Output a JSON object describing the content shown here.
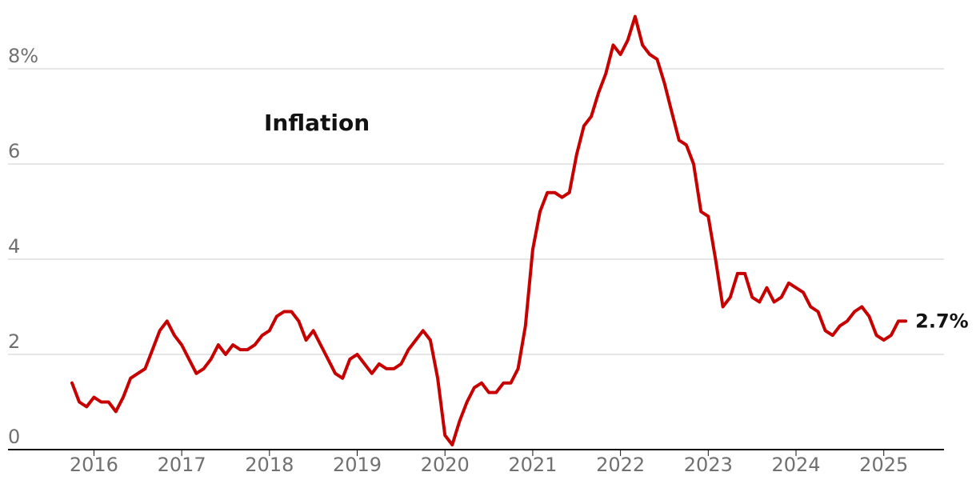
{
  "chart_data": {
    "type": "line",
    "title": "Inflation",
    "xlabel": "",
    "ylabel": "",
    "ylim": [
      0,
      9.2
    ],
    "grid": true,
    "y_ticks": [
      {
        "value": 0,
        "label": "0"
      },
      {
        "value": 2,
        "label": "2"
      },
      {
        "value": 4,
        "label": "4"
      },
      {
        "value": 6,
        "label": "6"
      },
      {
        "value": 8,
        "label": "8%"
      }
    ],
    "x_ticks": [
      "2016",
      "2017",
      "2018",
      "2019",
      "2020",
      "2021",
      "2022",
      "2023",
      "2024",
      "2025"
    ],
    "end_label": "2.7%",
    "colors": {
      "line": "#c70000",
      "grid": "#cccccc",
      "axis": "#121212"
    },
    "series": [
      {
        "x": [
          2016.0,
          2016.083,
          2016.167,
          2016.25,
          2016.333,
          2016.417,
          2016.5,
          2016.583,
          2016.667,
          2016.75,
          2016.833,
          2016.917,
          2017.0,
          2017.083,
          2017.167,
          2017.25,
          2017.333,
          2017.417,
          2017.5,
          2017.583,
          2017.667,
          2017.75,
          2017.833,
          2017.917,
          2018.0,
          2018.083,
          2018.167,
          2018.25,
          2018.333,
          2018.417,
          2018.5,
          2018.583,
          2018.667,
          2018.75,
          2018.833,
          2018.917,
          2019.0,
          2019.083,
          2019.167,
          2019.25,
          2019.333,
          2019.417,
          2019.5,
          2019.583,
          2019.667,
          2019.75,
          2019.833,
          2019.917,
          2020.0,
          2020.083,
          2020.167,
          2020.25,
          2020.333,
          2020.417,
          2020.5,
          2020.583,
          2020.667,
          2020.75,
          2020.833,
          2020.917,
          2021.0,
          2021.083,
          2021.167,
          2021.25,
          2021.333,
          2021.417,
          2021.5,
          2021.583,
          2021.667,
          2021.75,
          2021.833,
          2021.917,
          2022.0,
          2022.083,
          2022.167,
          2022.25,
          2022.333,
          2022.417,
          2022.5,
          2022.583,
          2022.667,
          2022.75,
          2022.833,
          2022.917,
          2023.0,
          2023.083,
          2023.167,
          2023.25,
          2023.333,
          2023.417,
          2023.5,
          2023.583,
          2023.667,
          2023.75,
          2023.833,
          2023.917,
          2024.0,
          2024.083,
          2024.167,
          2024.25,
          2024.333,
          2024.417,
          2024.5,
          2024.583,
          2024.667,
          2024.75,
          2024.833,
          2024.917,
          2025.0,
          2025.083,
          2025.167,
          2025.25,
          2025.333,
          2025.417
        ],
        "values": [
          1.4,
          1.0,
          0.9,
          1.1,
          1.0,
          1.0,
          0.8,
          1.1,
          1.5,
          1.6,
          1.7,
          2.1,
          2.5,
          2.7,
          2.4,
          2.2,
          1.9,
          1.6,
          1.7,
          1.9,
          2.2,
          2.0,
          2.2,
          2.1,
          2.1,
          2.2,
          2.4,
          2.5,
          2.8,
          2.9,
          2.9,
          2.7,
          2.3,
          2.5,
          2.2,
          1.9,
          1.6,
          1.5,
          1.9,
          2.0,
          1.8,
          1.6,
          1.8,
          1.7,
          1.7,
          1.8,
          2.1,
          2.3,
          2.5,
          2.3,
          1.5,
          0.3,
          0.1,
          0.6,
          1.0,
          1.3,
          1.4,
          1.2,
          1.2,
          1.4,
          1.4,
          1.7,
          2.6,
          4.2,
          5.0,
          5.4,
          5.4,
          5.3,
          5.4,
          6.2,
          6.8,
          7.0,
          7.5,
          7.9,
          8.5,
          8.3,
          8.6,
          9.1,
          8.5,
          8.3,
          8.2,
          7.7,
          7.1,
          6.5,
          6.4,
          6.0,
          5.0,
          4.9,
          4.0,
          3.0,
          3.2,
          3.7,
          3.7,
          3.2,
          3.1,
          3.4,
          3.1,
          3.2,
          3.5,
          3.4,
          3.3,
          3.0,
          2.9,
          2.5,
          2.4,
          2.6,
          2.7,
          2.9,
          3.0,
          2.8,
          2.4,
          2.3,
          2.4,
          2.7
        ]
      }
    ],
    "end_point": {
      "x": 2025.5,
      "value": 2.7
    }
  }
}
